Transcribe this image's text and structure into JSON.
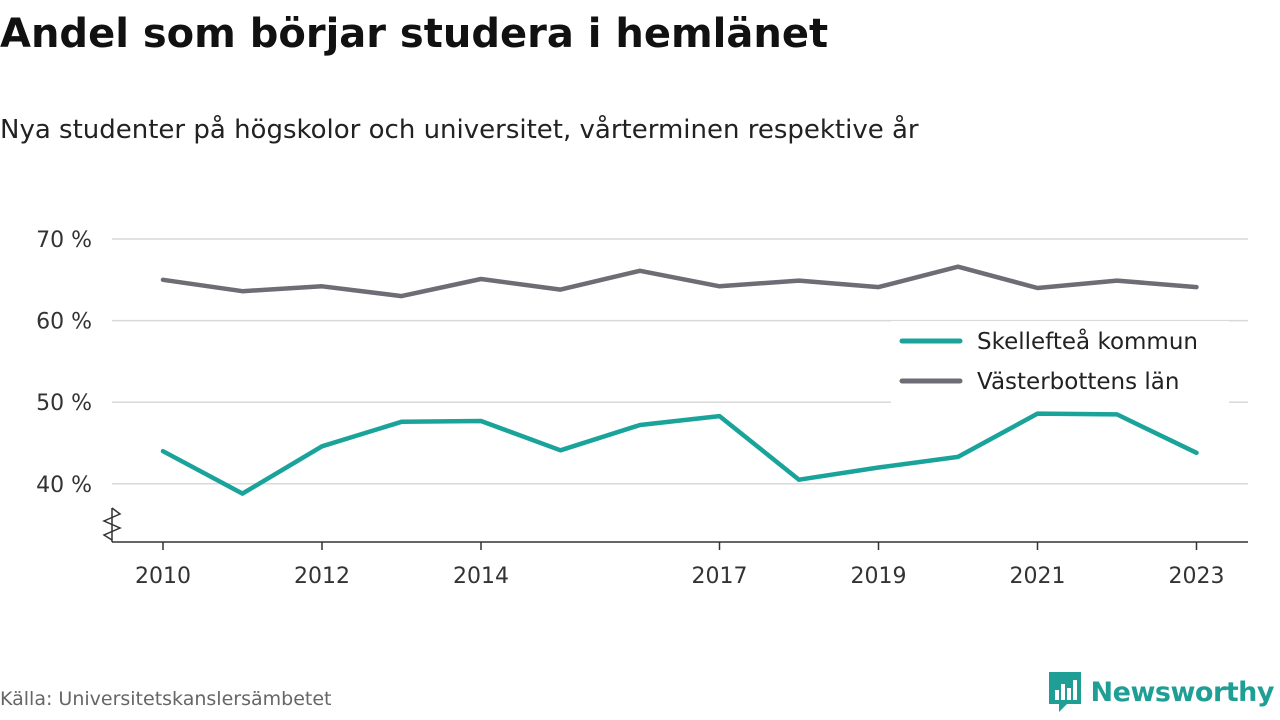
{
  "header": {
    "title": "Andel som börjar studera i hemlänet",
    "subtitle": "Nya studenter på högskolor och universitet, vårterminen respektive år"
  },
  "footer": {
    "source": "Källa: Universitetskanslersämbetet",
    "brand": "Newsworthy"
  },
  "colors": {
    "skelleftea": "#1aa39a",
    "vasterbotten": "#6e6d75",
    "grid": "#d9d9d9",
    "axis": "#333333",
    "brand": "#1f9e96"
  },
  "icons": {
    "brand_logo": "bar-chart-speech-bubble-icon",
    "axis_break": "zigzag-axis-break-icon"
  },
  "chart_data": {
    "type": "line",
    "title": "Andel som börjar studera i hemlänet",
    "subtitle": "Nya studenter på högskolor och universitet, vårterminen respektive år",
    "x": [
      2010,
      2011,
      2012,
      2013,
      2014,
      2015,
      2016,
      2017,
      2018,
      2019,
      2020,
      2021,
      2022,
      2023
    ],
    "x_ticks": [
      2010,
      2012,
      2014,
      2017,
      2019,
      2021,
      2023
    ],
    "x_tick_labels": [
      "2010",
      "2012",
      "2014",
      "2017",
      "2019",
      "2021",
      "2023"
    ],
    "y_ticks": [
      40,
      50,
      60,
      70
    ],
    "y_tick_labels": [
      "40 %",
      "50 %",
      "60 %",
      "70 %"
    ],
    "ylim": [
      33,
      70
    ],
    "y_axis_break": true,
    "grid": true,
    "legend_position": "right",
    "series": [
      {
        "name": "Skellefteå kommun",
        "color": "#1aa39a",
        "values": [
          44.0,
          38.8,
          44.6,
          47.6,
          47.7,
          44.1,
          47.2,
          48.3,
          40.5,
          42.0,
          43.3,
          48.6,
          48.5,
          43.8
        ]
      },
      {
        "name": "Västerbottens län",
        "color": "#6e6d75",
        "values": [
          65.0,
          63.6,
          64.2,
          63.0,
          65.1,
          63.8,
          66.1,
          64.2,
          64.9,
          64.1,
          66.6,
          64.0,
          64.9,
          64.1
        ]
      }
    ]
  }
}
